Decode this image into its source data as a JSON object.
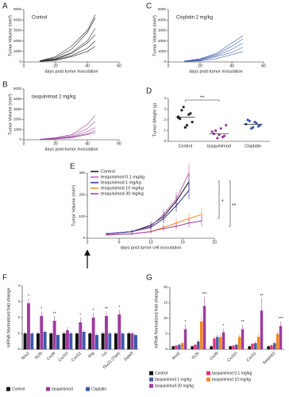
{
  "chart_data": [
    {
      "panel": "A",
      "type": "line",
      "title": "Control",
      "xlabel": "days post-tumor inoculation",
      "ylabel": "Tumor Volume (mm³)",
      "color": "#222222",
      "title_color": "#222222",
      "xlim": [
        0,
        60
      ],
      "ylim": [
        0,
        5000
      ],
      "xticks": [
        0,
        20,
        40,
        60
      ],
      "yticks": [
        0,
        1000,
        2000,
        3000,
        4000,
        5000
      ],
      "x": [
        10,
        20,
        30,
        40,
        45
      ],
      "series": [
        {
          "values": [
            100,
            400,
            1200,
            2800,
            4200
          ]
        },
        {
          "values": [
            100,
            500,
            1500,
            3000,
            4500
          ]
        },
        {
          "values": [
            80,
            300,
            900,
            2000,
            3200
          ]
        },
        {
          "values": [
            50,
            250,
            800,
            1800,
            2600
          ]
        },
        {
          "values": [
            60,
            200,
            600,
            1300,
            2000
          ]
        },
        {
          "values": [
            40,
            150,
            500,
            1000,
            1500
          ]
        }
      ]
    },
    {
      "panel": "C",
      "type": "line",
      "title": "Cisplatin 2 mg/kg",
      "xlabel": "days post-tumor inoculation",
      "ylabel": "Tumor Volume (mm³)",
      "color": "#3b5aa8",
      "title_color": "#3b5aa8",
      "xlim": [
        0,
        60
      ],
      "ylim": [
        0,
        5000
      ],
      "xticks": [
        0,
        20,
        40,
        60
      ],
      "yticks": [
        0,
        1000,
        2000,
        3000,
        4000,
        5000
      ],
      "x": [
        10,
        20,
        30,
        40,
        47
      ],
      "series": [
        {
          "values": [
            80,
            300,
            800,
            1800,
            2500
          ]
        },
        {
          "values": [
            60,
            250,
            700,
            1500,
            2200
          ]
        },
        {
          "values": [
            50,
            200,
            600,
            1200,
            1800
          ]
        },
        {
          "values": [
            40,
            150,
            500,
            900,
            1400
          ]
        },
        {
          "values": [
            30,
            100,
            300,
            700,
            1000
          ]
        }
      ]
    },
    {
      "panel": "B",
      "type": "line",
      "title": "tasquinimod 2 mg/kg",
      "xlabel": "days post-tumor inoculation",
      "ylabel": "Tumor Volume (mm³)",
      "color": "#9b3a9b",
      "title_color": "#9b3a9b",
      "xlim": [
        0,
        60
      ],
      "ylim": [
        0,
        5000
      ],
      "xticks": [
        0,
        20,
        40,
        60
      ],
      "yticks": [
        0,
        1000,
        2000,
        3000,
        4000,
        5000
      ],
      "x": [
        10,
        20,
        30,
        40,
        45
      ],
      "series": [
        {
          "values": [
            50,
            200,
            500,
            1500,
            2400
          ]
        },
        {
          "values": [
            40,
            150,
            400,
            1100,
            1800
          ]
        },
        {
          "values": [
            30,
            100,
            300,
            800,
            1200
          ]
        },
        {
          "values": [
            30,
            100,
            250,
            600,
            900
          ]
        },
        {
          "values": [
            20,
            80,
            200,
            500,
            700
          ]
        }
      ]
    },
    {
      "panel": "D",
      "type": "scatter",
      "ylabel": "Tumor Weight (g)",
      "ylim": [
        0,
        4
      ],
      "yticks": [
        0,
        1,
        2,
        3,
        4
      ],
      "categories": [
        "Control",
        "tasquinimod",
        "Cisplatin"
      ],
      "colors": [
        "#222222",
        "#9b3a9b",
        "#3b5aa8"
      ],
      "values": [
        [
          2.2,
          2.6,
          1.5,
          3.2,
          2.1,
          1.8,
          2.5,
          1.3,
          2.9,
          2.3
        ],
        [
          0.9,
          0.5,
          1.2,
          0.3,
          0.7,
          1.5,
          0.4,
          0.6,
          1.0
        ],
        [
          1.6,
          1.4,
          1.8,
          1.2,
          2.0,
          1.5,
          1.7,
          1.3,
          1.9
        ]
      ],
      "medians": [
        2.25,
        0.7,
        1.6
      ],
      "annotation": "***"
    },
    {
      "panel": "E",
      "type": "line",
      "xlabel": "days post tumor cell inoculation",
      "ylabel": "Tumor Volume (mm³)",
      "xlim": [
        0,
        20
      ],
      "ylim": [
        0,
        300
      ],
      "xticks": [
        0,
        5,
        10,
        15,
        20
      ],
      "yticks": [
        0,
        100,
        200,
        300
      ],
      "x": [
        3,
        7,
        10,
        12,
        14,
        16,
        18
      ],
      "series": [
        {
          "name": "Control",
          "color": "#111111",
          "values": [
            20,
            30,
            60,
            100,
            170,
            260,
            null
          ],
          "errors": [
            5,
            8,
            15,
            20,
            30,
            40,
            null
          ]
        },
        {
          "name": "tesquinimod 0.1 mg/kg",
          "color": "#c060c0",
          "values": [
            20,
            30,
            55,
            110,
            180,
            300,
            null
          ],
          "errors": [
            5,
            8,
            15,
            25,
            35,
            45,
            null
          ]
        },
        {
          "name": "tesquinimod 1 mg/kg",
          "color": "#2a2a8a",
          "values": [
            20,
            30,
            50,
            90,
            150,
            220,
            null
          ],
          "errors": [
            5,
            8,
            12,
            20,
            30,
            40,
            null
          ]
        },
        {
          "name": "tesquinimod 10 mg/kg",
          "color": "#f08a1e",
          "values": [
            15,
            20,
            30,
            50,
            70,
            90,
            110
          ],
          "errors": [
            4,
            6,
            10,
            15,
            20,
            25,
            30
          ]
        },
        {
          "name": "tesquinimod 30 mg/kg",
          "color": "#a03aa0",
          "values": [
            15,
            20,
            30,
            45,
            55,
            70,
            80
          ],
          "errors": [
            4,
            6,
            8,
            12,
            15,
            20,
            25
          ]
        }
      ],
      "annotations": [
        "*",
        "**"
      ]
    },
    {
      "panel": "F",
      "type": "bar",
      "ylabel": "mRNA Normalized fold change",
      "ylim": [
        0,
        4
      ],
      "yticks": [
        0,
        1,
        2,
        3,
        4
      ],
      "categories": [
        "Nos2",
        "Il12b",
        "Cxcl9",
        "Cxcl10",
        "Cxcl11",
        "Ifng",
        "Tnf",
        "Tbx21 (Tbet)",
        "Gata3"
      ],
      "series": [
        {
          "name": "Control",
          "color": "#111111",
          "values": [
            1,
            1,
            1,
            1,
            1,
            1,
            1,
            1,
            1
          ],
          "errors": [
            0.1,
            0.1,
            0.1,
            0.1,
            0.1,
            0.1,
            0.1,
            0.1,
            0.1
          ]
        },
        {
          "name": "tasquinimod",
          "color": "#a03aa0",
          "values": [
            2.9,
            2.1,
            1.8,
            1.2,
            1.7,
            2.0,
            2.1,
            2.2,
            1.0
          ],
          "errors": [
            0.3,
            0.3,
            0.3,
            0.2,
            0.3,
            0.3,
            0.3,
            0.3,
            0.1
          ]
        },
        {
          "name": "Cisplatin",
          "color": "#3b5aa8",
          "values": [
            1.0,
            1.1,
            0.9,
            1.0,
            1.1,
            0.9,
            1.0,
            1.0,
            0.9
          ],
          "errors": [
            0.1,
            0.1,
            0.1,
            0.1,
            0.1,
            0.1,
            0.1,
            0.1,
            0.1
          ]
        }
      ],
      "stars_series": 1,
      "stars": [
        "*",
        "*",
        "**",
        null,
        "*",
        "*",
        "**",
        "*",
        null
      ]
    },
    {
      "panel": "G",
      "type": "bar",
      "ylabel": "mRNA Normalized fold change",
      "ylim": [
        0,
        20
      ],
      "yticks": [
        0,
        5,
        10,
        15,
        20
      ],
      "categories": [
        "Nos2",
        "Il12b",
        "Cxcl9",
        "Cxcl10",
        "Cxcl11",
        "Serpinb2"
      ],
      "series": [
        {
          "name": "Control",
          "color": "#111111",
          "values": [
            1,
            1,
            1,
            1,
            1,
            1
          ],
          "errors": [
            0.2,
            0.2,
            0.2,
            0.2,
            0.2,
            0.2
          ]
        },
        {
          "name": "tasquinimod 0.1 mg/kg",
          "color": "#e8307a",
          "values": [
            1.2,
            1.5,
            3.5,
            1.2,
            1.8,
            1.3
          ],
          "errors": [
            0.3,
            0.4,
            0.8,
            0.3,
            0.5,
            0.3
          ]
        },
        {
          "name": "tasquinimod 1 mg/kg",
          "color": "#4a5aa8",
          "values": [
            1.5,
            2.5,
            4,
            1.5,
            2,
            2
          ],
          "errors": [
            0.4,
            0.6,
            0.8,
            0.4,
            0.5,
            0.5
          ]
        },
        {
          "name": "tasquinimod 10 mg/kg",
          "color": "#f08a1e",
          "values": [
            2,
            9,
            4,
            4,
            4,
            5
          ],
          "errors": [
            0.5,
            2,
            1,
            1,
            1.2,
            1
          ]
        },
        {
          "name": "tasquinimod 30 mg/kg",
          "color": "#a03aa0",
          "values": [
            6.5,
            14,
            5.5,
            6.5,
            12.5,
            7.5
          ],
          "errors": [
            1.5,
            3,
            1.2,
            1.5,
            4,
            1.5
          ]
        }
      ],
      "stars_series": 4,
      "stars": [
        "*",
        "***",
        "*",
        "**",
        "**",
        "***"
      ]
    }
  ]
}
